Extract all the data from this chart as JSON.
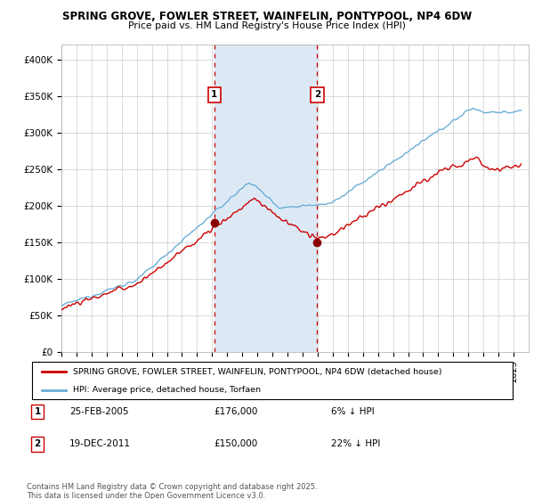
{
  "title": "SPRING GROVE, FOWLER STREET, WAINFELIN, PONTYPOOL, NP4 6DW",
  "subtitle": "Price paid vs. HM Land Registry's House Price Index (HPI)",
  "legend_line1": "SPRING GROVE, FOWLER STREET, WAINFELIN, PONTYPOOL, NP4 6DW (detached house)",
  "legend_line2": "HPI: Average price, detached house, Torfaen",
  "transaction1_date": "25-FEB-2005",
  "transaction1_price": "£176,000",
  "transaction1_hpi": "6% ↓ HPI",
  "transaction2_date": "19-DEC-2011",
  "transaction2_price": "£150,000",
  "transaction2_hpi": "22% ↓ HPI",
  "footer": "Contains HM Land Registry data © Crown copyright and database right 2025.\nThis data is licensed under the Open Government Licence v3.0.",
  "ylim": [
    0,
    420000
  ],
  "yticks": [
    0,
    50000,
    100000,
    150000,
    200000,
    250000,
    300000,
    350000,
    400000
  ],
  "ytick_labels": [
    "£0",
    "£50K",
    "£100K",
    "£150K",
    "£200K",
    "£250K",
    "£300K",
    "£350K",
    "£400K"
  ],
  "hpi_color": "#6baed6",
  "price_color": "#cc0000",
  "transaction_color": "#cc0000",
  "shade_color": "#dce9f5",
  "background_color": "#ffffff",
  "grid_color": "#cccccc",
  "transaction1_x": 2005.15,
  "transaction2_x": 2011.97,
  "transaction1_y": 176000,
  "transaction2_y": 150000,
  "xmin": 1995,
  "xmax": 2026
}
